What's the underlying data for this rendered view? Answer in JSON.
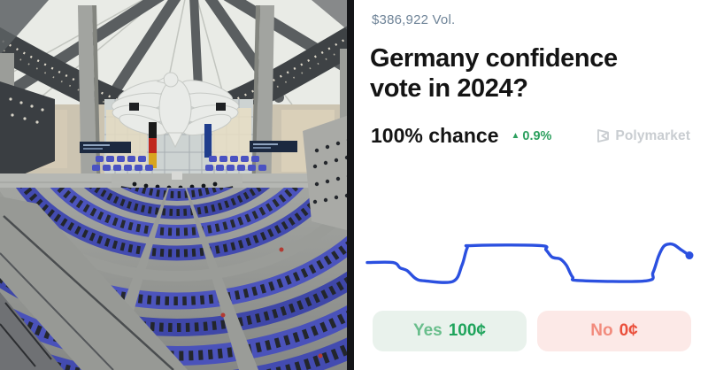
{
  "card": {
    "volume": "$386,922 Vol.",
    "title": "Germany confidence vote in 2024?",
    "chance": "100% chance",
    "delta": "0.9%",
    "delta_direction": "up",
    "brand": "Polymarket"
  },
  "buttons": {
    "yes_label": "Yes",
    "yes_price": "100¢",
    "no_label": "No",
    "no_price": "0¢"
  },
  "icons": {
    "up_triangle": "▲"
  },
  "colors": {
    "line-blue": "#2b50e0",
    "green-strong": "#1fa45c",
    "green-soft": "#69be8c",
    "green-bg": "#e9f2ec",
    "red-strong": "#ea4f3b",
    "red-soft": "#f28b7d",
    "red-bg": "#fce9e7",
    "delta-green": "#2da05f",
    "vol-gray": "#6f8498",
    "brand-gray": "#c9cdd1",
    "title-black": "#141414"
  },
  "chart_data": {
    "type": "line",
    "title": "",
    "xlabel": "",
    "ylabel": "",
    "axes_visible": false,
    "grid": false,
    "legend": false,
    "line_color": "#2b50e0",
    "end_dot": true,
    "ylim": [
      80,
      114
    ],
    "x": [
      0,
      8,
      10.2,
      12.4,
      15.1,
      17.9,
      26.6,
      29.4,
      31,
      32.7,
      53.6,
      55.5,
      57.4,
      59.9,
      61.8,
      63.7,
      65.9,
      86.5,
      88.7,
      90.4,
      92,
      93.7,
      95.3,
      97.5,
      100
    ],
    "values": [
      94.3,
      94.3,
      92.5,
      91.6,
      88.9,
      88.2,
      88,
      93.4,
      99.1,
      100,
      100,
      98.5,
      96.1,
      95.5,
      93.4,
      89.5,
      88.3,
      88.2,
      91,
      96.4,
      99.7,
      100.5,
      100.2,
      98.5,
      96.7
    ]
  }
}
